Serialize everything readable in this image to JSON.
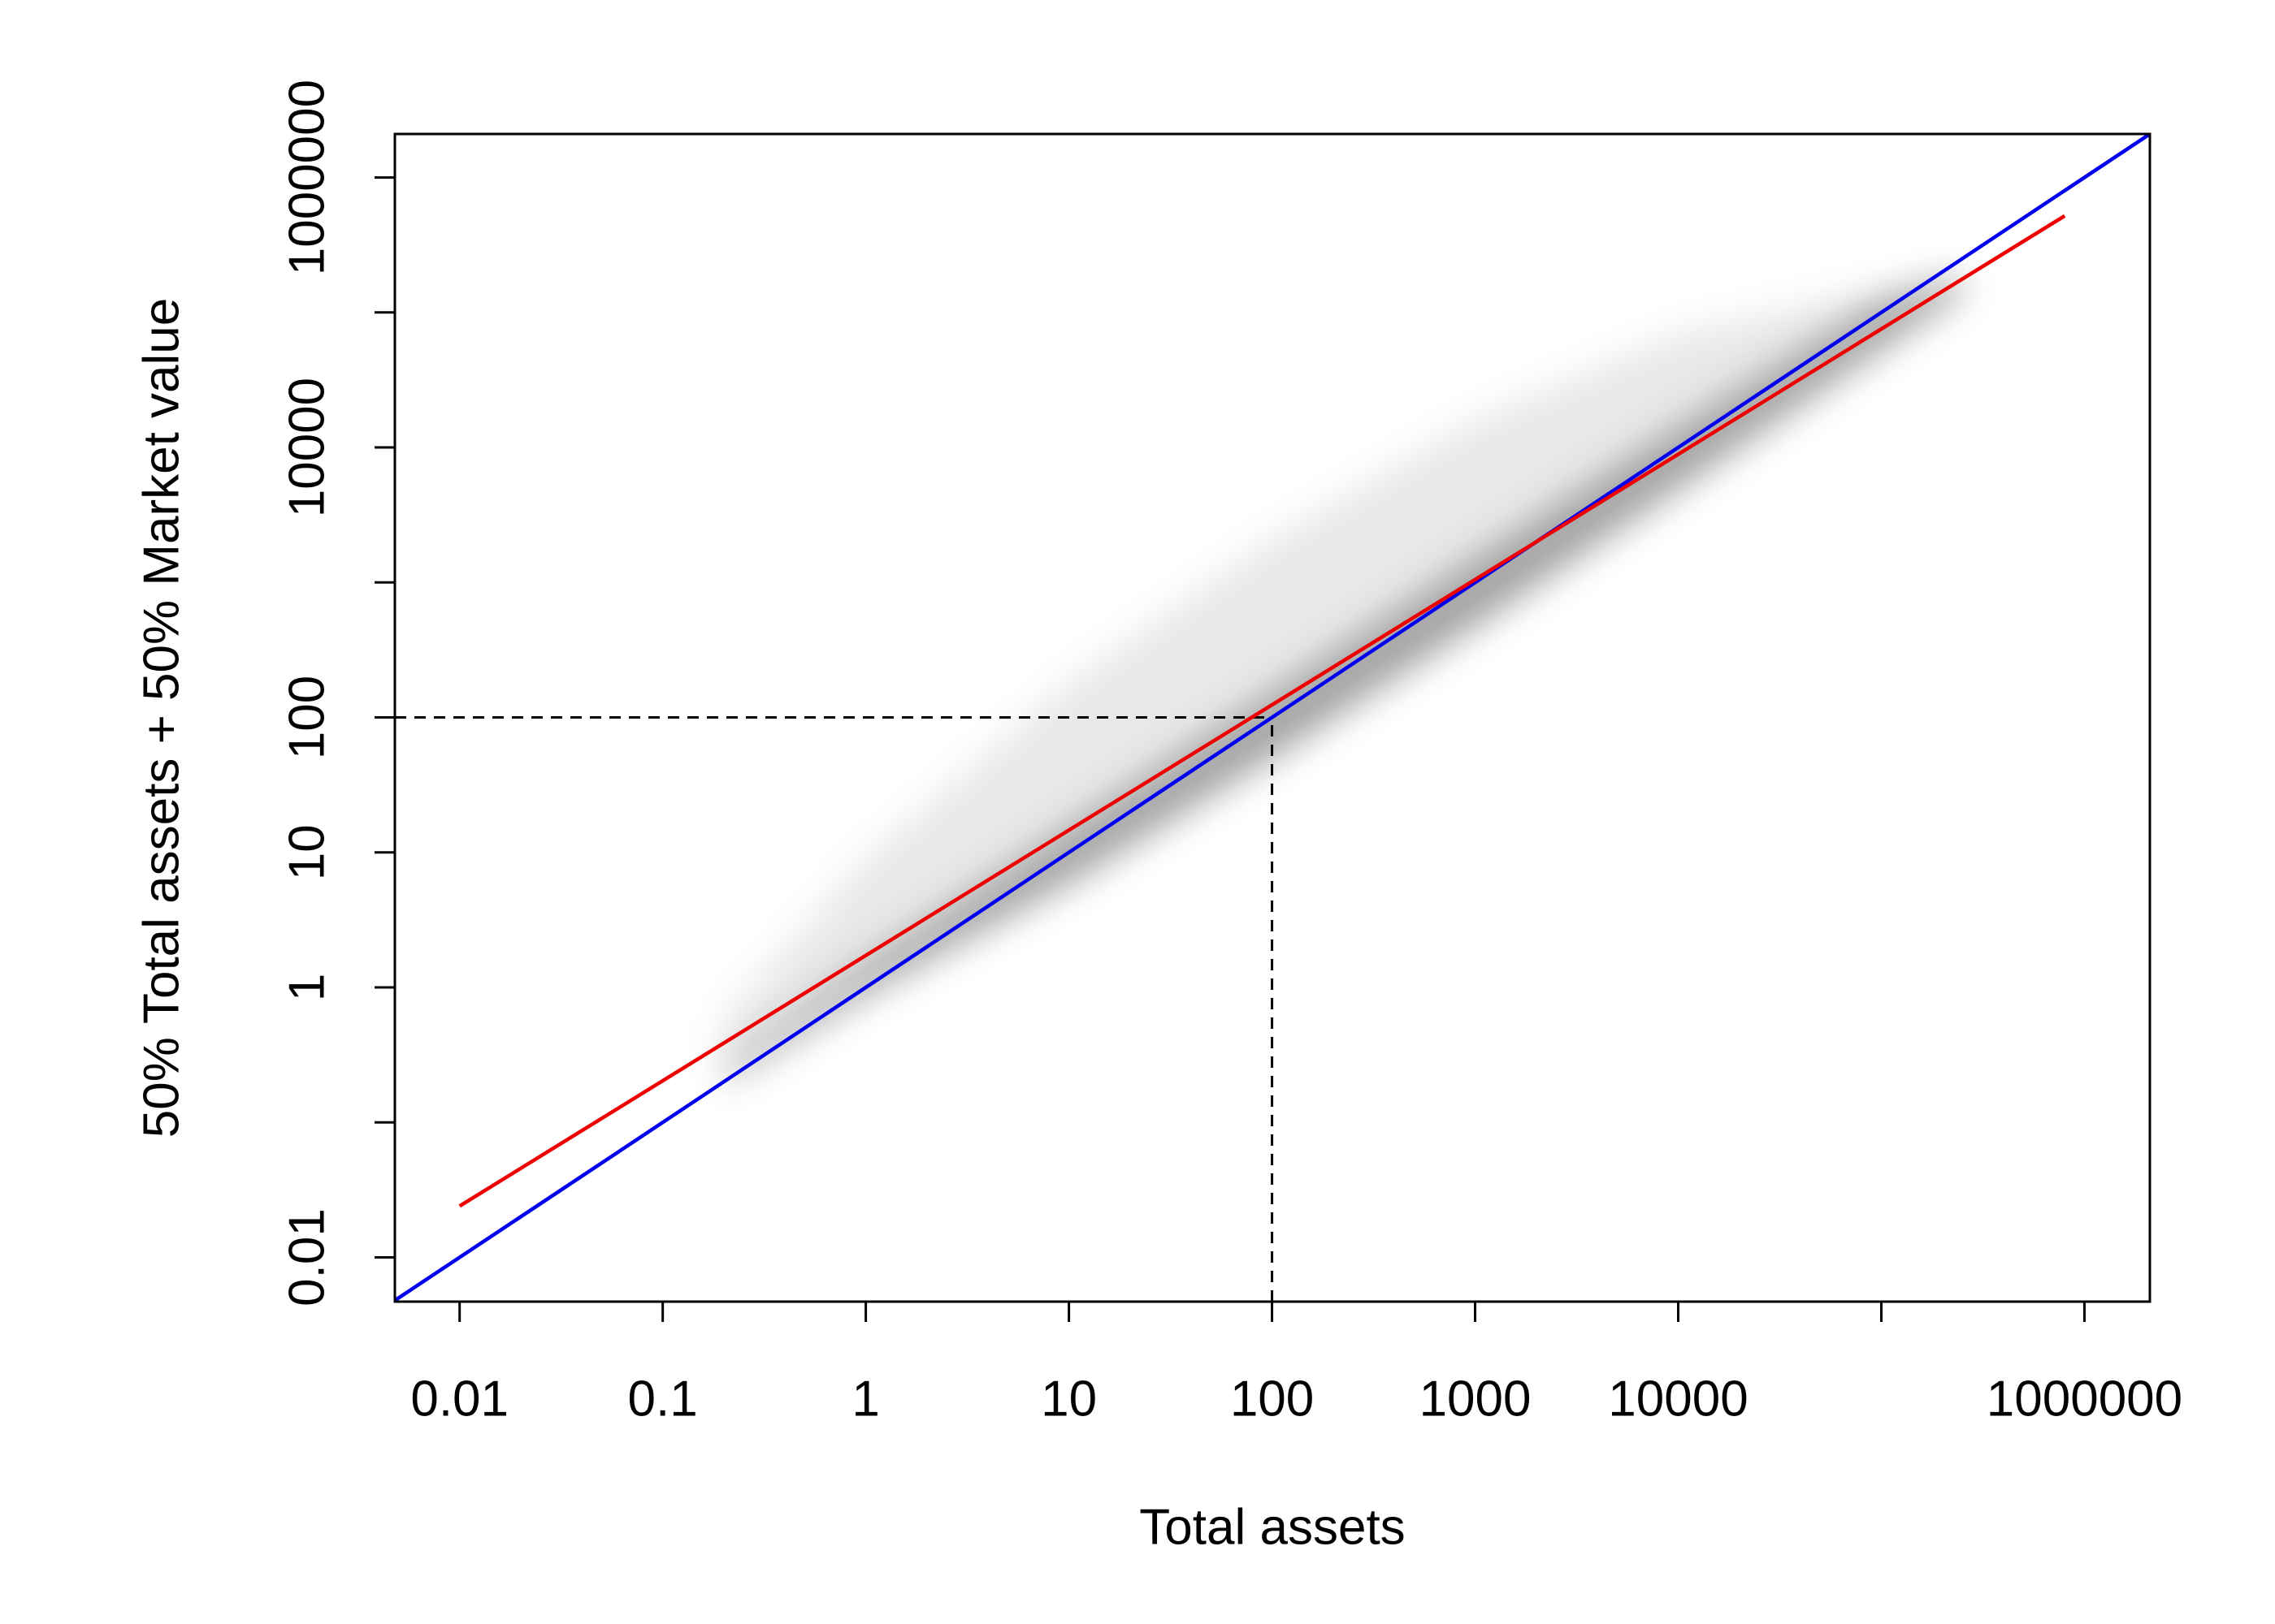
{
  "chart_data": {
    "type": "line",
    "x_label": "Total assets",
    "y_label": "50% Total assets + 50% Market value",
    "log_x": true,
    "log_y": true,
    "xlim": [
      0.0048,
      2100000
    ],
    "ylim": [
      0.0047,
      2100000
    ],
    "xticks": [
      0.01,
      0.1,
      1,
      10,
      100,
      1000,
      10000,
      {
        "value": 100000,
        "label": null
      },
      1000000
    ],
    "yticks": [
      0.01,
      {
        "value": 0.1,
        "label": null
      },
      1,
      10,
      100,
      {
        "value": 1000,
        "label": null
      },
      10000,
      {
        "value": 100000,
        "label": null
      },
      1000000
    ],
    "series": [
      {
        "color": "#0000ee",
        "x": [
          0.0048,
          2100000
        ],
        "values": [
          0.0048,
          2100000
        ]
      },
      {
        "color": "#ee0000",
        "x": [
          0.01,
          800000
        ],
        "values": [
          0.024,
          520000
        ]
      }
    ],
    "cloud": {
      "color": "#000000",
      "x": [
        0.2,
        1,
        10,
        100,
        1000,
        10000,
        100000,
        250000
      ],
      "upper": [
        0.6,
        9,
        180,
        2100,
        16000,
        70000,
        150000,
        200000
      ],
      "lower": [
        0.2,
        0.9,
        6,
        51,
        480,
        5000,
        54000,
        140000
      ],
      "core_upper": [
        0.25,
        1.5,
        15,
        150,
        1500,
        14000,
        120000,
        180000
      ]
    },
    "reference_point": {
      "x": 100,
      "y": 100
    }
  }
}
